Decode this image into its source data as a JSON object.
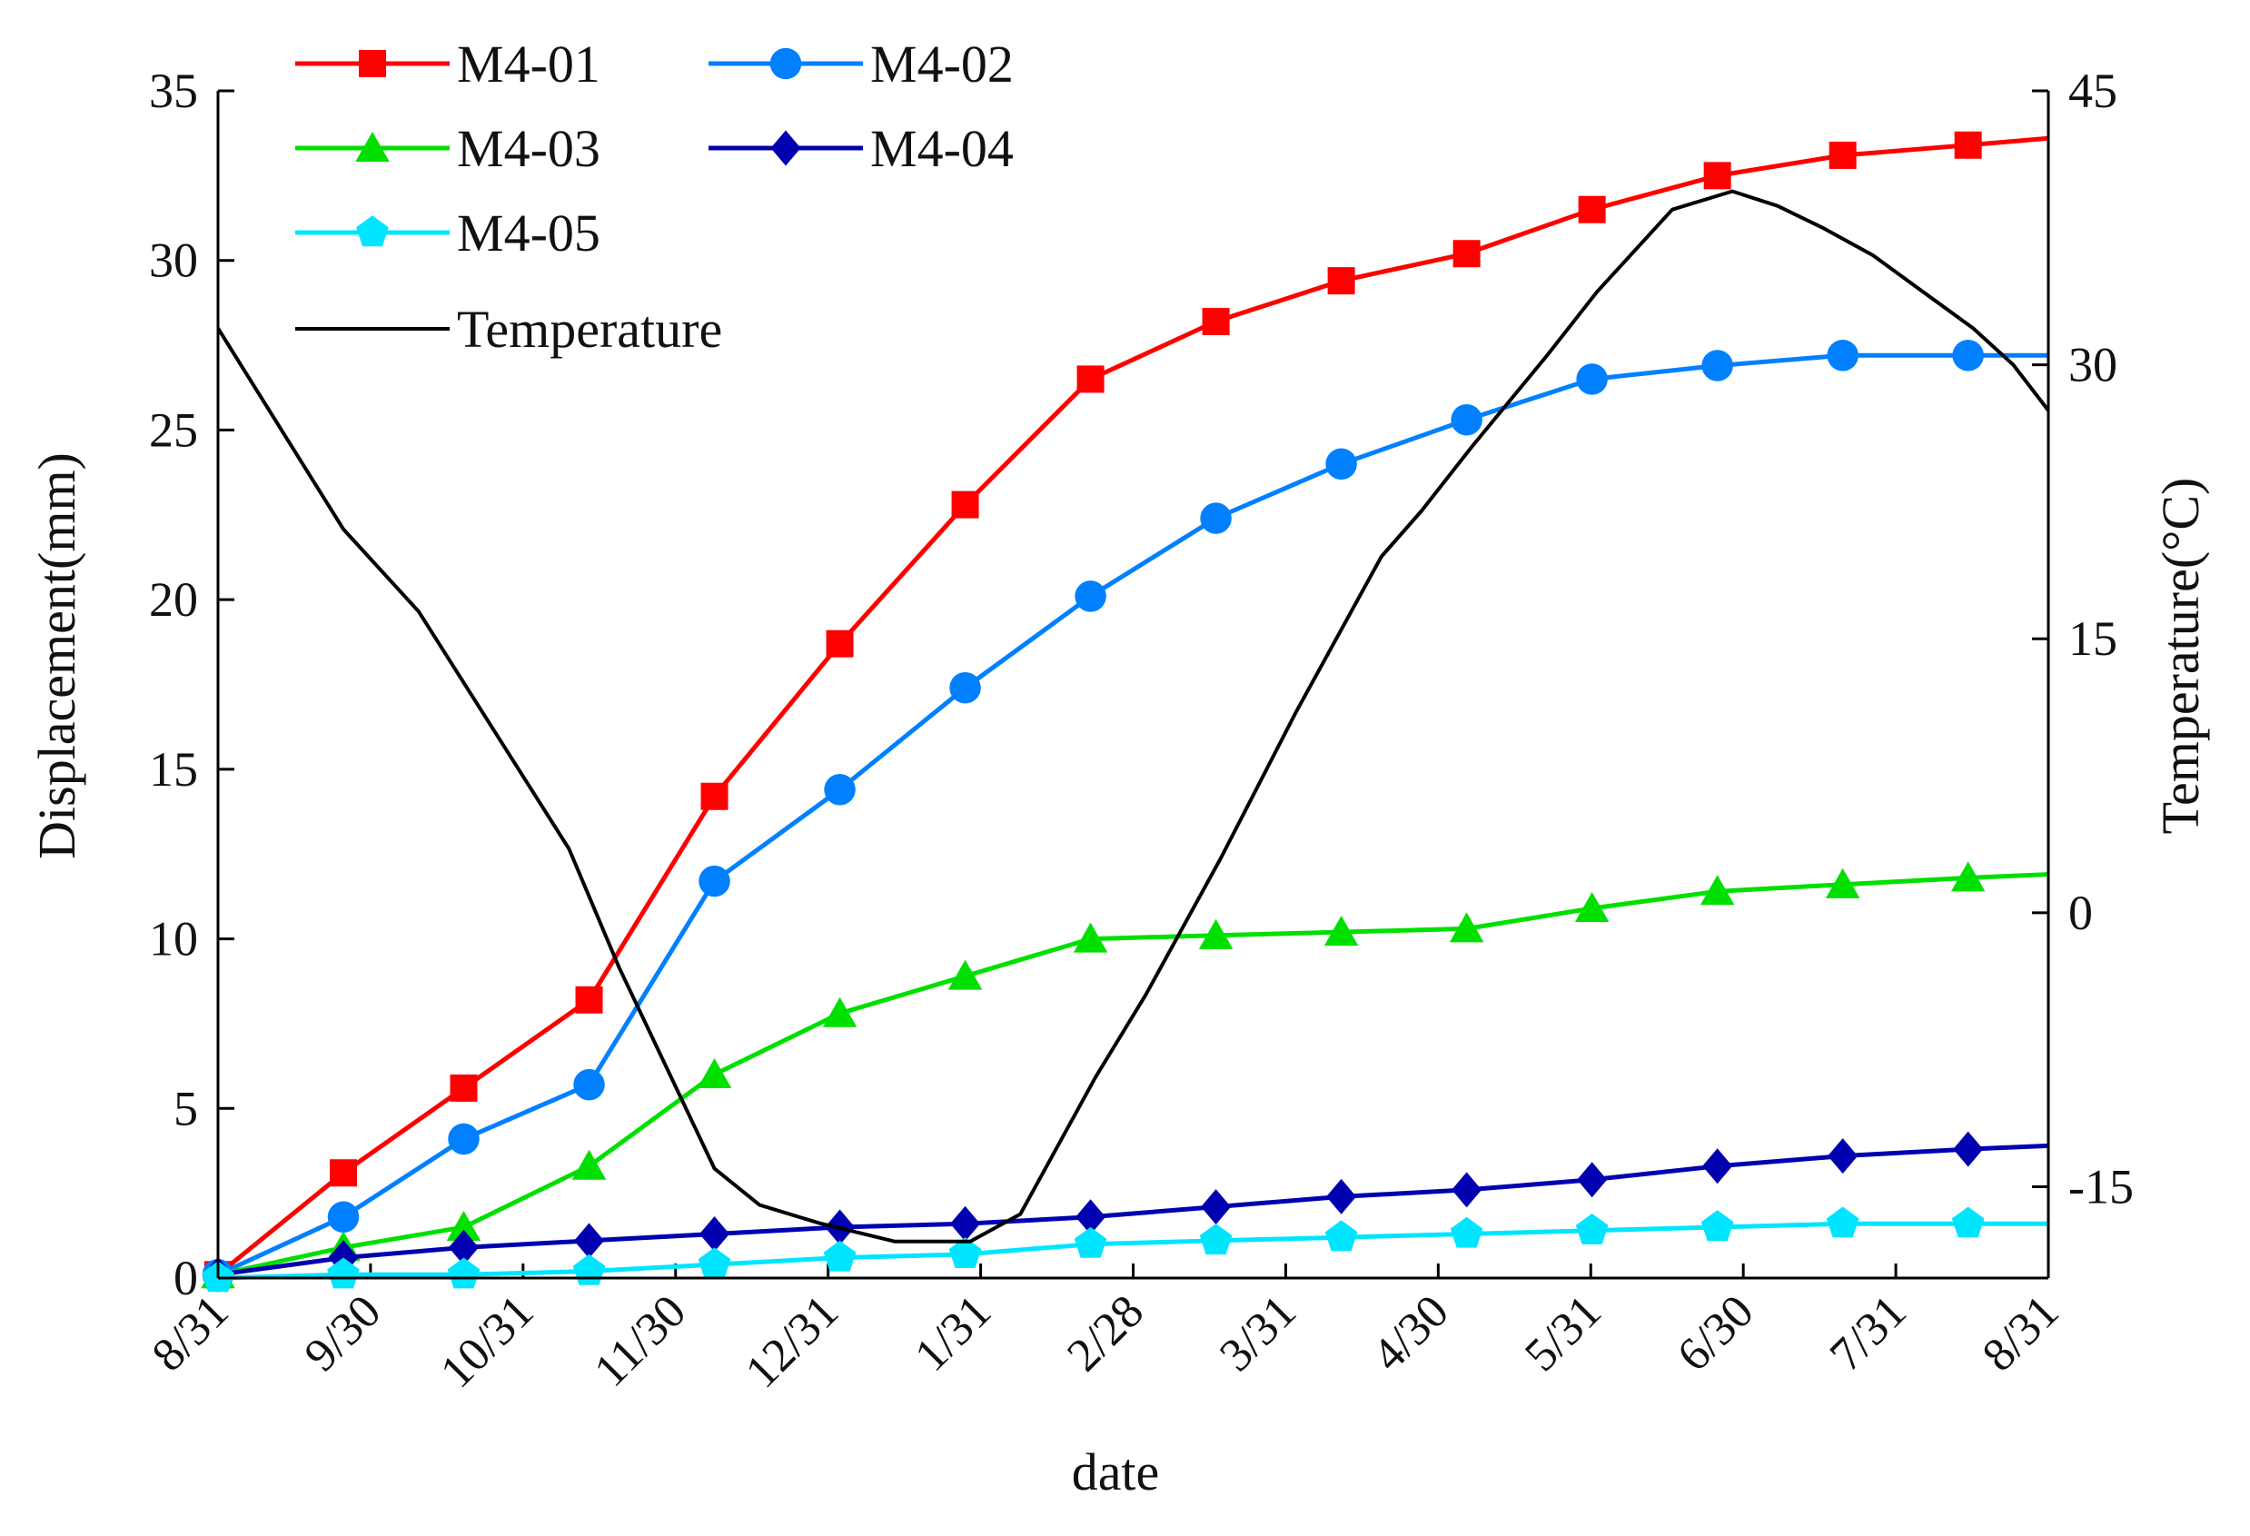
{
  "chart_data": {
    "type": "line",
    "xlabel": "date",
    "ylabel": "Displacement(mm)",
    "y2label": "Temperature(°C)",
    "x_tick_labels": [
      "8/31",
      "9/30",
      "10/31",
      "11/30",
      "12/31",
      "1/31",
      "2/28",
      "3/31",
      "4/30",
      "5/31",
      "6/30",
      "7/31",
      "8/31"
    ],
    "x_range": [
      0,
      365
    ],
    "ylim": [
      0,
      35
    ],
    "y_ticks": [
      0,
      5,
      10,
      15,
      20,
      25,
      30,
      35
    ],
    "y_tick_labels": [
      "0",
      "5",
      "10",
      "15",
      "20",
      "25",
      "30",
      "35"
    ],
    "y2lim": [
      -20,
      45
    ],
    "y2_ticks": [
      -15,
      0,
      15,
      30,
      45
    ],
    "y2_tick_labels": [
      "-15",
      "0",
      "15",
      "30",
      "45"
    ],
    "legend_position": "top-left",
    "series": [
      {
        "name": "M4-01",
        "axis": "left",
        "color": "#ff0000",
        "marker": "square",
        "x": [
          0,
          25,
          49,
          74,
          99,
          124,
          149,
          174,
          199,
          224,
          249,
          274,
          299,
          324,
          349,
          365
        ],
        "values": [
          0.1,
          3.1,
          5.6,
          8.2,
          14.2,
          18.7,
          22.8,
          26.5,
          28.2,
          29.4,
          30.2,
          31.5,
          32.5,
          33.1,
          33.4,
          33.6
        ]
      },
      {
        "name": "M4-02",
        "axis": "left",
        "color": "#0080ff",
        "marker": "circle",
        "x": [
          0,
          25,
          49,
          74,
          99,
          124,
          149,
          174,
          199,
          224,
          249,
          274,
          299,
          324,
          349,
          365
        ],
        "values": [
          0.1,
          1.8,
          4.1,
          5.7,
          11.7,
          14.4,
          17.4,
          20.1,
          22.4,
          24.0,
          25.3,
          26.5,
          26.9,
          27.2,
          27.2,
          27.2
        ]
      },
      {
        "name": "M4-03",
        "axis": "left",
        "color": "#00e000",
        "marker": "triangle",
        "x": [
          0,
          25,
          49,
          74,
          99,
          124,
          149,
          174,
          199,
          224,
          249,
          274,
          299,
          324,
          349,
          365
        ],
        "values": [
          0.1,
          0.9,
          1.5,
          3.3,
          6.0,
          7.8,
          8.9,
          10.0,
          10.1,
          10.2,
          10.3,
          10.9,
          11.4,
          11.6,
          11.8,
          11.9
        ]
      },
      {
        "name": "M4-04",
        "axis": "left",
        "color": "#0000b0",
        "marker": "diamond",
        "x": [
          0,
          25,
          49,
          74,
          99,
          124,
          149,
          174,
          199,
          224,
          249,
          274,
          299,
          324,
          349,
          365
        ],
        "values": [
          0.1,
          0.6,
          0.9,
          1.1,
          1.3,
          1.5,
          1.6,
          1.8,
          2.1,
          2.4,
          2.6,
          2.9,
          3.3,
          3.6,
          3.8,
          3.9
        ]
      },
      {
        "name": "M4-05",
        "axis": "left",
        "color": "#00e5ff",
        "marker": "pentagon",
        "x": [
          0,
          25,
          49,
          74,
          99,
          124,
          149,
          174,
          199,
          224,
          249,
          274,
          299,
          324,
          349,
          365
        ],
        "values": [
          0.0,
          0.1,
          0.1,
          0.2,
          0.4,
          0.6,
          0.7,
          1.0,
          1.1,
          1.2,
          1.3,
          1.4,
          1.5,
          1.6,
          1.6,
          1.6
        ]
      },
      {
        "name": "Temperature",
        "axis": "right",
        "color": "#000000",
        "marker": "none",
        "x": [
          0,
          25,
          40,
          55,
          70,
          80,
          99,
          108,
          120,
          135,
          150,
          160,
          175,
          185,
          200,
          215,
          232,
          240,
          250,
          265,
          275,
          290,
          302,
          311,
          320,
          330,
          340,
          350,
          358,
          365
        ],
        "values": [
          32,
          21,
          16.5,
          10,
          3.5,
          -3,
          -14,
          -16,
          -17,
          -18,
          -18,
          -16.5,
          -9,
          -4.5,
          3,
          11,
          19.5,
          22,
          25.5,
          30.5,
          34,
          38.5,
          39.5,
          38.7,
          37.5,
          36,
          34,
          32,
          30,
          27.5
        ]
      }
    ]
  }
}
